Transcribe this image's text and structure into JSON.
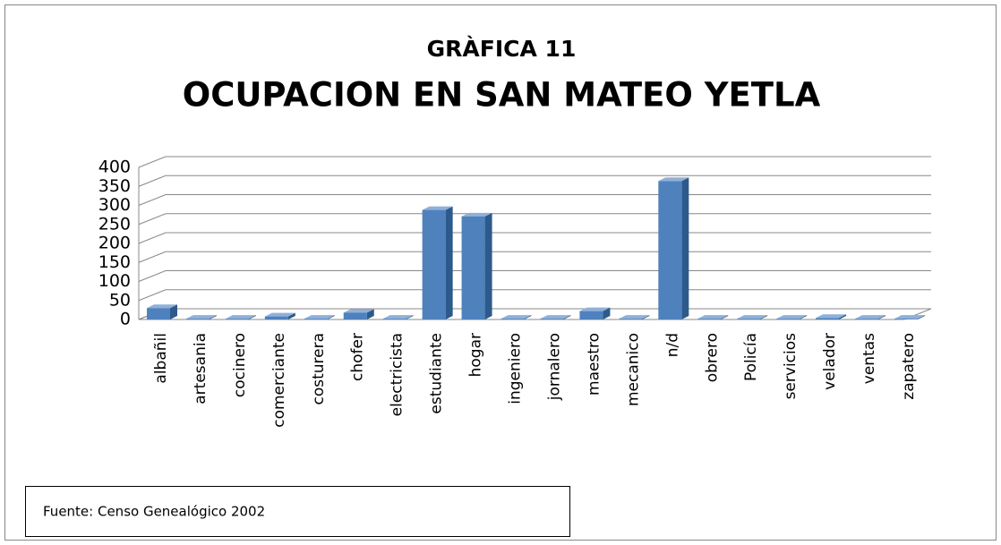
{
  "chart_data": {
    "type": "bar3d",
    "title": "GRÀFICA 11",
    "subtitle": "OCUPACION  EN SAN MATEO YETLA",
    "categories": [
      "albañil",
      "artesania",
      "cocinero",
      "comerciante",
      "costurera",
      "chofer",
      "electricista",
      "estudiante",
      "hogar",
      "ingeniero",
      "jornalero",
      "maestro",
      "mecanico",
      "n/d",
      "obrero",
      "Policía",
      "servicios",
      "velador",
      "ventas",
      "zapatero"
    ],
    "values": [
      30,
      2,
      2,
      8,
      2,
      18,
      2,
      288,
      271,
      2,
      2,
      22,
      2,
      364,
      2,
      2,
      2,
      4,
      2,
      2
    ],
    "color": "#4f81bd",
    "ylim": [
      0,
      400
    ],
    "yticks": [
      0,
      50,
      100,
      150,
      200,
      250,
      300,
      350,
      400
    ],
    "grid": true,
    "source": "Fuente: Censo Genealógico 2002"
  }
}
